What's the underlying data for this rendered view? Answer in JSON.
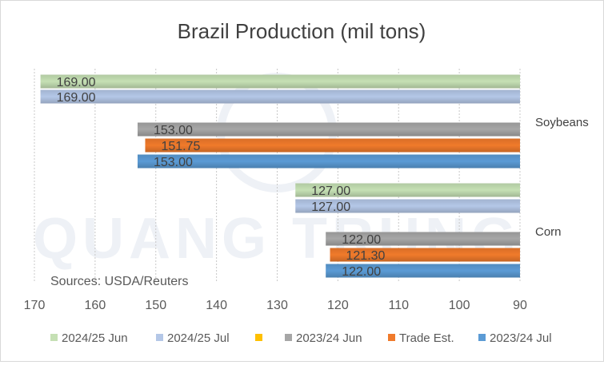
{
  "chart_data": {
    "type": "bar",
    "orientation": "horizontal",
    "title": "Brazil Production (mil tons)",
    "source_note": "Sources: USDA/Reuters",
    "watermark": "QUANG TRUNG",
    "x_axis": {
      "reversed": true,
      "range": [
        90,
        170
      ],
      "ticks": [
        170,
        160,
        150,
        140,
        130,
        120,
        110,
        100,
        90
      ],
      "gridlines": "vertical dotted"
    },
    "categories": [
      "Soybeans",
      "Corn"
    ],
    "series": [
      {
        "name": "2024/25 Jun",
        "color": "#c5e0b4",
        "values": [
          169.0,
          127.0
        ]
      },
      {
        "name": "2024/25 Jul",
        "color": "#b4c7e7",
        "values": [
          169.0,
          127.0
        ]
      },
      {
        "name": "",
        "color": "#ffc000",
        "values": [
          null,
          null
        ]
      },
      {
        "name": "2023/24 Jun",
        "color": "#a6a6a6",
        "values": [
          153.0,
          122.0
        ]
      },
      {
        "name": "Trade Est.",
        "color": "#f07a2b",
        "values": [
          151.75,
          121.3
        ]
      },
      {
        "name": "2023/24 Jul",
        "color": "#5b9bd5",
        "values": [
          153.0,
          122.0
        ]
      }
    ],
    "data_labels": [
      [
        "169.00",
        "169.00",
        "153.00",
        "151.75",
        "153.00"
      ],
      [
        "127.00",
        "127.00",
        "122.00",
        "121.30",
        "122.00"
      ]
    ],
    "legend": {
      "position": "bottom"
    }
  }
}
